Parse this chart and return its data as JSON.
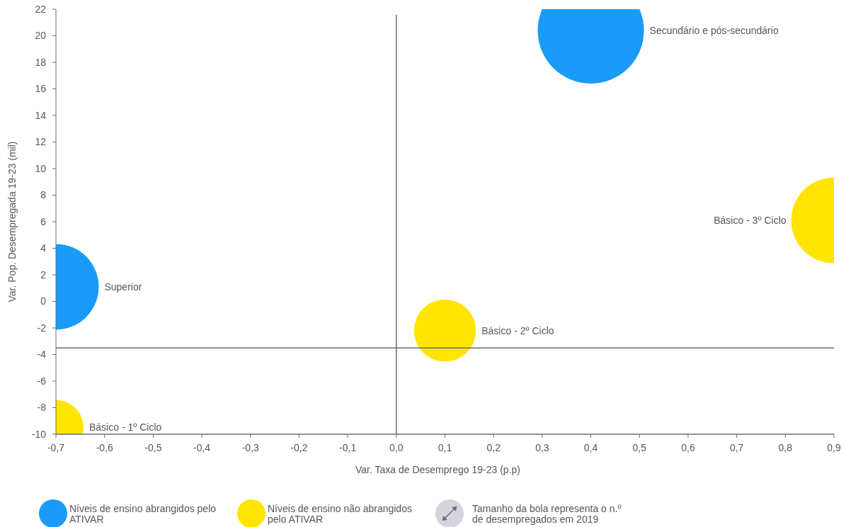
{
  "chart_data": {
    "type": "bubble",
    "xlabel": "Var. Taxa de Desemprego 19-23 (p.p)",
    "ylabel": "Var. Pop. Desempregada 19-23 (mil)",
    "xlim": [
      -0.7,
      0.9
    ],
    "xticks": [
      {
        "value": -0.7,
        "label": "-0,7"
      },
      {
        "value": -0.6,
        "label": "-0,6"
      },
      {
        "value": -0.5,
        "label": "-0,5"
      },
      {
        "value": -0.4,
        "label": "-0,4"
      },
      {
        "value": -0.3,
        "label": "-0,3"
      },
      {
        "value": -0.2,
        "label": "-0,2"
      },
      {
        "value": -0.1,
        "label": "-0,1"
      },
      {
        "value": 0,
        "label": "0,0"
      },
      {
        "value": 0.1,
        "label": "0,1"
      },
      {
        "value": 0.2,
        "label": "0,2"
      },
      {
        "value": 0.3,
        "label": "0,3"
      },
      {
        "value": 0.4,
        "label": "0,4"
      },
      {
        "value": 0.5,
        "label": "0,5"
      },
      {
        "value": 0.6,
        "label": "0,6"
      },
      {
        "value": 0.7,
        "label": "0,7"
      },
      {
        "value": 0.8,
        "label": "0,8"
      },
      {
        "value": 0.9,
        "label": "0,9"
      }
    ],
    "ylim": [
      -10,
      22
    ],
    "yticks": [
      -10,
      -8,
      -6,
      -4,
      -2,
      0,
      2,
      4,
      6,
      8,
      10,
      12,
      14,
      16,
      18,
      20,
      22
    ],
    "grid": false,
    "legend": "bottom",
    "series": [
      {
        "name": "Níveis de ensino abrangidos pelo ATIVAR",
        "color": "#1a9bfa",
        "x": [
          0.4,
          -0.7
        ],
        "values": [
          20.4,
          1.1
        ],
        "sizes": [
          1,
          0.65
        ]
      },
      {
        "name": "Níveis de ensino não abrangidos pelo ATIVAR",
        "color": "#ffe500",
        "x": [
          0.9,
          0.1,
          -0.7
        ],
        "values": [
          6.1,
          -2.2,
          -9.5
        ],
        "sizes": [
          0.65,
          0.34,
          0.27
        ]
      }
    ],
    "ref_lines": [
      {
        "axis": "x",
        "value": 0,
        "color": "#6b6b7a"
      },
      {
        "axis": "y",
        "value": -3.5,
        "color": "#6b6b7a"
      }
    ],
    "annotations": [
      "Secundário e pós-secundário",
      "Superior",
      "Básico - 3º Ciclo",
      "Básico - 2º Ciclo",
      "Básico - 1º Ciclo",
      "Tamanho da bola representa o n.º de desempregados em 2019"
    ]
  }
}
